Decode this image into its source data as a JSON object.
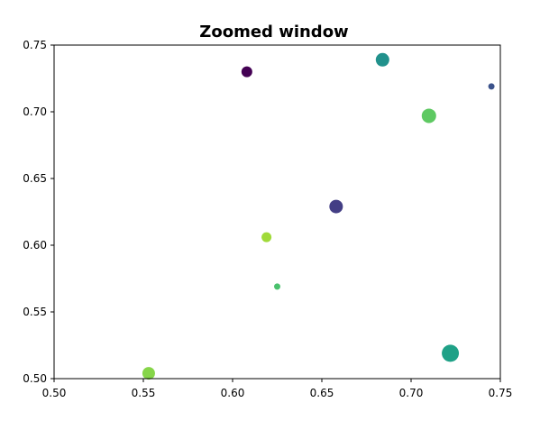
{
  "chart_data": {
    "type": "scatter",
    "title": "Zoomed window",
    "xlabel": "",
    "ylabel": "",
    "xlim": [
      0.5,
      0.75
    ],
    "ylim": [
      0.5,
      0.75
    ],
    "xticks": [
      "0.50",
      "0.55",
      "0.60",
      "0.65",
      "0.70",
      "0.75"
    ],
    "yticks": [
      "0.50",
      "0.55",
      "0.60",
      "0.65",
      "0.70",
      "0.75"
    ],
    "grid": false,
    "legend": "none",
    "points": [
      {
        "x": 0.608,
        "y": 0.73,
        "size": 12,
        "color": "#440154"
      },
      {
        "x": 0.684,
        "y": 0.739,
        "size": 15,
        "color": "#21918c"
      },
      {
        "x": 0.745,
        "y": 0.719,
        "size": 7,
        "color": "#3b528b"
      },
      {
        "x": 0.71,
        "y": 0.697,
        "size": 16,
        "color": "#5ec962"
      },
      {
        "x": 0.658,
        "y": 0.629,
        "size": 15,
        "color": "#433e85"
      },
      {
        "x": 0.619,
        "y": 0.606,
        "size": 11,
        "color": "#a0da39"
      },
      {
        "x": 0.625,
        "y": 0.569,
        "size": 7,
        "color": "#4ac16d"
      },
      {
        "x": 0.553,
        "y": 0.504,
        "size": 14,
        "color": "#86d549"
      },
      {
        "x": 0.722,
        "y": 0.519,
        "size": 19,
        "color": "#1fa187"
      }
    ]
  }
}
